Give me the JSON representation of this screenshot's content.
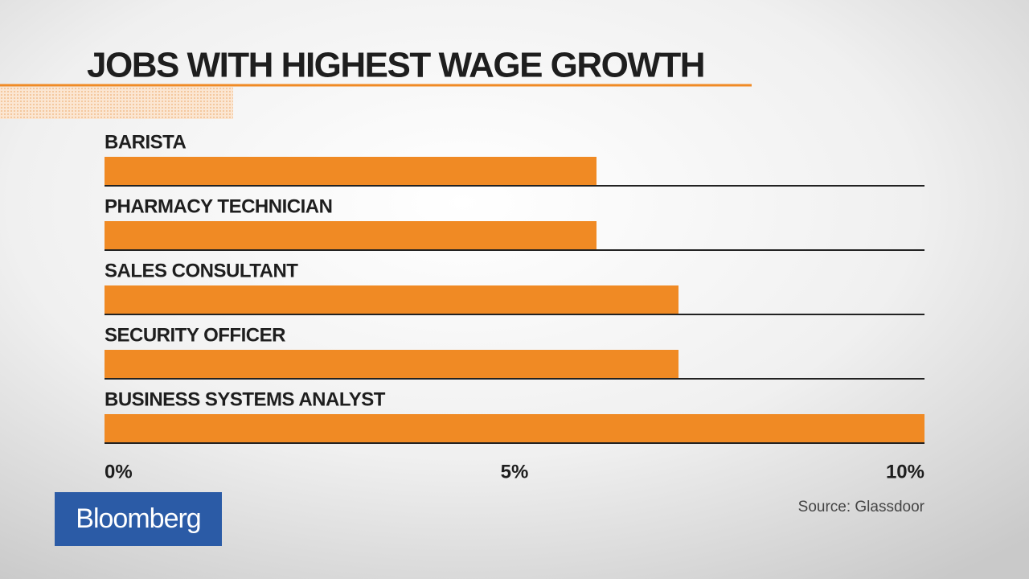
{
  "chart_data": {
    "type": "hbar",
    "title": "JOBS WITH HIGHEST WAGE GROWTH",
    "categories": [
      "BARISTA",
      "PHARMACY TECHNICIAN",
      "SALES CONSULTANT",
      "SECURITY OFFICER",
      "BUSINESS SYSTEMS ANALYST"
    ],
    "values": [
      6.0,
      6.0,
      7.0,
      7.0,
      10.0
    ],
    "color": "#f08a24",
    "xlim": [
      0,
      10
    ],
    "xticks": [
      {
        "value": 0,
        "label": "0%"
      },
      {
        "value": 5,
        "label": "5%"
      },
      {
        "value": 10,
        "label": "10%"
      }
    ],
    "source": "Source: Glassdoor",
    "logo": "Bloomberg"
  }
}
